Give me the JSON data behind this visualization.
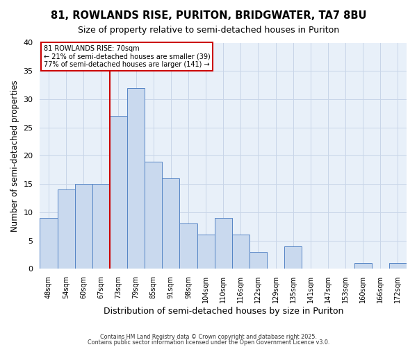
{
  "title": "81, ROWLANDS RISE, PURITON, BRIDGWATER, TA7 8BU",
  "subtitle": "Size of property relative to semi-detached houses in Puriton",
  "xlabel": "Distribution of semi-detached houses by size in Puriton",
  "ylabel": "Number of semi-detached properties",
  "bar_labels": [
    "48sqm",
    "54sqm",
    "60sqm",
    "67sqm",
    "73sqm",
    "79sqm",
    "85sqm",
    "91sqm",
    "98sqm",
    "104sqm",
    "110sqm",
    "116sqm",
    "122sqm",
    "129sqm",
    "135sqm",
    "141sqm",
    "147sqm",
    "153sqm",
    "160sqm",
    "166sqm",
    "172sqm"
  ],
  "bar_values": [
    9,
    14,
    15,
    15,
    27,
    32,
    19,
    16,
    8,
    6,
    9,
    6,
    3,
    0,
    4,
    0,
    0,
    0,
    1,
    0,
    1
  ],
  "bar_color": "#c9d9ee",
  "bar_edge_color": "#5585c5",
  "ylim": [
    0,
    40
  ],
  "yticks": [
    0,
    5,
    10,
    15,
    20,
    25,
    30,
    35,
    40
  ],
  "vline_x": 3.5,
  "vline_color": "#cc0000",
  "annotation_title": "81 ROWLANDS RISE: 70sqm",
  "annotation_line1": "← 21% of semi-detached houses are smaller (39)",
  "annotation_line2": "77% of semi-detached houses are larger (141) →",
  "annotation_box_edge": "#cc0000",
  "footer1": "Contains HM Land Registry data © Crown copyright and database right 2025.",
  "footer2": "Contains public sector information licensed under the Open Government Licence v3.0.",
  "background_color": "#ffffff",
  "plot_bg_color": "#e8f0f9",
  "grid_color": "#c8d5e8"
}
